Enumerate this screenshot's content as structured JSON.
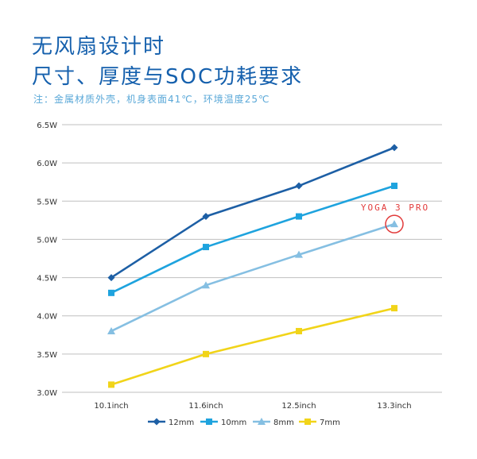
{
  "header": {
    "title_line1": "无风扇设计时",
    "title_line2": "尺寸、厚度与SOC功耗要求",
    "note": "注：金属材质外壳，机身表面41℃，环境温度25℃"
  },
  "colors": {
    "title": "#1560ad",
    "note": "#5aa8d8",
    "grid": "#bfbfbf",
    "highlight": "#e23b3b"
  },
  "chart_data": {
    "type": "line",
    "title": "",
    "xlabel": "",
    "ylabel": "",
    "categories": [
      "10.1inch",
      "11.6inch",
      "12.5inch",
      "13.3inch"
    ],
    "ylim": [
      3.0,
      6.5
    ],
    "y_ticks": [
      {
        "value": 3.0,
        "label": "3.0W"
      },
      {
        "value": 3.5,
        "label": "3.5W"
      },
      {
        "value": 4.0,
        "label": "4.0W"
      },
      {
        "value": 4.5,
        "label": "4.5W"
      },
      {
        "value": 5.0,
        "label": "5.0W"
      },
      {
        "value": 5.5,
        "label": "5.5W"
      },
      {
        "value": 6.0,
        "label": "6.0W"
      },
      {
        "value": 6.5,
        "label": "6.5W"
      }
    ],
    "grid": true,
    "legend_position": "bottom",
    "series": [
      {
        "name": "12mm",
        "values": [
          4.5,
          5.3,
          5.7,
          6.2
        ],
        "color": "#1d5fa5",
        "marker": "diamond"
      },
      {
        "name": "10mm",
        "values": [
          4.3,
          4.9,
          5.3,
          5.7
        ],
        "color": "#1ea3de",
        "marker": "square"
      },
      {
        "name": "8mm",
        "values": [
          3.8,
          4.4,
          4.8,
          5.2
        ],
        "color": "#85bfe2",
        "marker": "triangle"
      },
      {
        "name": "7mm",
        "values": [
          3.1,
          3.5,
          3.8,
          4.1
        ],
        "color": "#f1d419",
        "marker": "square"
      }
    ],
    "annotation": {
      "text": "YOGA 3 PRO",
      "series": "8mm",
      "category": "13.3inch"
    }
  }
}
